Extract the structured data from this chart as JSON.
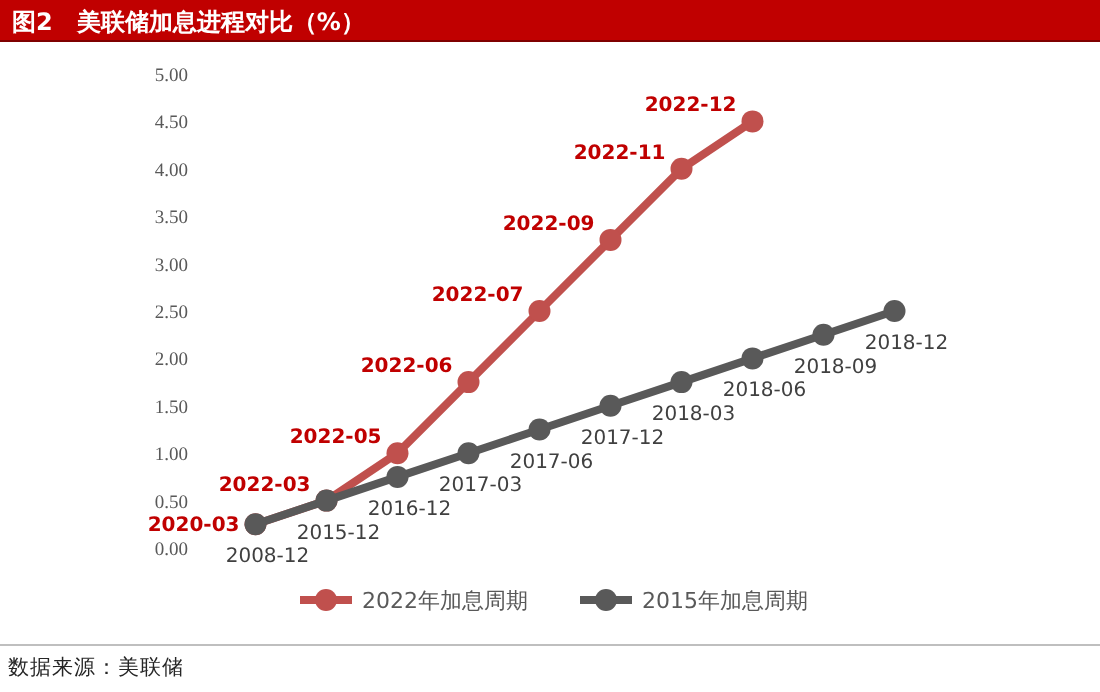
{
  "chart_data": {
    "type": "line",
    "title": "图2　美联储加息进程对比（%）",
    "annotations": [
      "数据来源：美联储"
    ],
    "categories": [
      null,
      null,
      null,
      null,
      null,
      null,
      null,
      null,
      null,
      null
    ],
    "ylim": [
      0,
      5
    ],
    "yticks": [
      {
        "value": 0,
        "label": "0.00"
      },
      {
        "value": 0.5,
        "label": "0.50"
      },
      {
        "value": 1,
        "label": "1.00"
      },
      {
        "value": 1.5,
        "label": "1.50"
      },
      {
        "value": 2,
        "label": "2.00"
      },
      {
        "value": 2.5,
        "label": "2.50"
      },
      {
        "value": 3,
        "label": "3.00"
      },
      {
        "value": 3.5,
        "label": "3.50"
      },
      {
        "value": 4,
        "label": "4.00"
      },
      {
        "value": 4.5,
        "label": "4.50"
      },
      {
        "value": 5,
        "label": "5.00"
      }
    ],
    "grid": false,
    "legend": "bottom",
    "marker": "circle",
    "series": [
      {
        "name": "2022年加息周期",
        "color": "#c0504d",
        "values": [
          0.25,
          0.5,
          1.0,
          1.75,
          2.5,
          3.25,
          4.0,
          4.5,
          null,
          null
        ],
        "value_labels": [
          "2020-03",
          "2022-03",
          "2022-05",
          "2022-06",
          "2022-07",
          "2022-09",
          "2022-11",
          "2022-12",
          null,
          null
        ]
      },
      {
        "name": "2015年加息周期",
        "color": "#595959",
        "values": [
          0.25,
          0.5,
          0.75,
          1.0,
          1.25,
          1.5,
          1.75,
          2.0,
          2.25,
          2.5
        ],
        "value_labels": [
          "2008-12",
          "2015-12",
          "2016-12",
          "2017-03",
          "2017-06",
          "2017-12",
          "2018-03",
          "2018-06",
          "2018-09",
          "2018-12"
        ]
      }
    ]
  }
}
